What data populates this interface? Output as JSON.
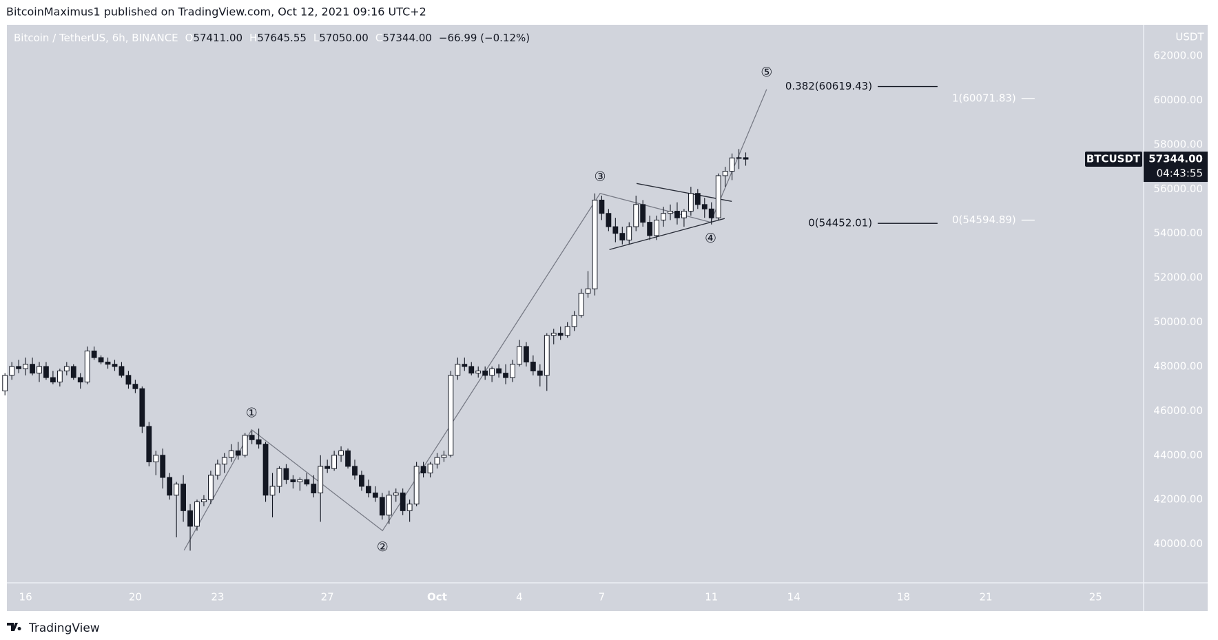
{
  "header": {
    "title": "BitcoinMaximus1 published on TradingView.com, Oct 12, 2021 09:16 UTC+2",
    "brand": "TradingView"
  },
  "chart_data": {
    "type": "candlestick",
    "legend": {
      "symbol": "Bitcoin / TetherUS, 6h, BINANCE",
      "ohlc": [
        {
          "key": "O",
          "value": "57411.00"
        },
        {
          "key": "H",
          "value": "57645.55"
        },
        {
          "key": "L",
          "value": "57050.00"
        },
        {
          "key": "C",
          "value": "57344.00"
        }
      ],
      "change": "−66.99 (−0.12%)"
    },
    "y_unit": "USDT",
    "up_color": "#ffffff",
    "down_color": "#131722",
    "background": "#d1d4dc",
    "grid": false,
    "xlim": [
      15.32,
      56.75
    ],
    "xticks": [
      16,
      20,
      23,
      27,
      {
        "value": 31,
        "label": "Oct"
      },
      {
        "value": 34,
        "label": "4"
      },
      {
        "value": 37,
        "label": "7"
      },
      {
        "value": 41,
        "label": "11"
      },
      {
        "value": 44,
        "label": "14"
      },
      {
        "value": 48,
        "label": "18"
      },
      {
        "value": 51,
        "label": "21"
      },
      {
        "value": 55,
        "label": "25"
      }
    ],
    "ylim": [
      38250,
      63400
    ],
    "yticks": [
      {
        "value": 40000,
        "label": "40000.00"
      },
      {
        "value": 42000,
        "label": "42000.00"
      },
      {
        "value": 44000,
        "label": "44000.00"
      },
      {
        "value": 46000,
        "label": "46000.00"
      },
      {
        "value": 48000,
        "label": "48000.00"
      },
      {
        "value": 50000,
        "label": "50000.00"
      },
      {
        "value": 52000,
        "label": "52000.00"
      },
      {
        "value": 54000,
        "label": "54000.00"
      },
      {
        "value": 56000,
        "label": "56000.00"
      },
      {
        "value": 58000,
        "label": "58000.00"
      },
      {
        "value": 60000,
        "label": "60000.00"
      },
      {
        "value": 62000,
        "label": "62000.00"
      }
    ],
    "x": [
      15.25,
      15.5,
      15.75,
      16,
      16.25,
      16.5,
      16.75,
      17,
      17.25,
      17.5,
      17.75,
      18,
      18.25,
      18.5,
      18.75,
      19,
      19.25,
      19.5,
      19.75,
      20,
      20.25,
      20.5,
      20.75,
      21,
      21.25,
      21.5,
      21.75,
      22,
      22.25,
      22.5,
      22.75,
      23,
      23.25,
      23.5,
      23.75,
      24,
      24.25,
      24.5,
      24.75,
      25,
      25.25,
      25.5,
      25.75,
      26,
      26.25,
      26.5,
      26.75,
      27,
      27.25,
      27.5,
      27.75,
      28,
      28.25,
      28.5,
      28.75,
      29,
      29.25,
      29.5,
      29.75,
      30,
      30.25,
      30.5,
      30.75,
      31,
      31.25,
      31.5,
      31.75,
      32,
      32.25,
      32.5,
      32.75,
      33,
      33.25,
      33.5,
      33.75,
      34,
      34.25,
      34.5,
      34.75,
      35,
      35.25,
      35.5,
      35.75,
      36,
      36.25,
      36.5,
      36.75,
      37,
      37.25,
      37.5,
      37.75,
      38,
      38.25,
      38.5,
      38.75,
      39,
      39.25,
      39.5,
      39.75,
      40,
      40.25,
      40.5,
      40.75,
      41,
      41.25,
      41.5,
      41.75,
      42,
      42.25
    ],
    "open": [
      46900,
      47600,
      48000,
      47900,
      48100,
      47700,
      48000,
      47500,
      47300,
      47800,
      48000,
      47500,
      47300,
      48700,
      48400,
      48200,
      48100,
      48000,
      47600,
      47200,
      47000,
      45300,
      43700,
      44000,
      43000,
      42200,
      42700,
      41500,
      40800,
      41900,
      42000,
      43100,
      43600,
      43900,
      44200,
      44000,
      44900,
      44700,
      44500,
      42200,
      42600,
      43400,
      42900,
      42800,
      42900,
      42700,
      42300,
      43500,
      43400,
      44000,
      44200,
      43500,
      43100,
      42600,
      42300,
      42100,
      41300,
      42200,
      42300,
      41500,
      41800,
      43500,
      43200,
      43600,
      43900,
      44000,
      47600,
      48100,
      48000,
      47700,
      47800,
      47600,
      47900,
      47700,
      47500,
      48100,
      48900,
      48200,
      47800,
      47600,
      49400,
      49500,
      49400,
      49800,
      50300,
      51300,
      51500,
      55500,
      54900,
      54300,
      54000,
      53700,
      54300,
      55300,
      54500,
      53900,
      54600,
      54900,
      55000,
      54700,
      55000,
      55800,
      55300,
      55100,
      54700,
      56600,
      56800,
      57400,
      57411
    ],
    "high": [
      47700,
      48200,
      48300,
      48400,
      48400,
      48200,
      48200,
      47800,
      47900,
      48200,
      48100,
      47700,
      48900,
      48900,
      48500,
      48400,
      48300,
      48200,
      47800,
      47400,
      47100,
      45500,
      44200,
      44300,
      43200,
      42800,
      43100,
      41800,
      42000,
      42200,
      43300,
      43800,
      44100,
      44500,
      44600,
      45000,
      45100,
      45200,
      44600,
      43200,
      43500,
      43600,
      43100,
      43000,
      43200,
      43100,
      44000,
      43800,
      44200,
      44400,
      44300,
      43800,
      43300,
      42900,
      42600,
      42300,
      42400,
      42500,
      42500,
      42000,
      43700,
      43700,
      43700,
      44100,
      44200,
      47800,
      48400,
      48400,
      48200,
      48000,
      48000,
      48000,
      48100,
      48100,
      48300,
      49200,
      49100,
      48500,
      48100,
      49500,
      49700,
      49800,
      50000,
      50500,
      51500,
      52300,
      55800,
      55700,
      55100,
      54700,
      54300,
      54500,
      55700,
      55500,
      54800,
      54800,
      55200,
      55300,
      55400,
      55100,
      56100,
      56000,
      55600,
      55400,
      56700,
      57000,
      57600,
      57800,
      57645.55
    ],
    "low": [
      46700,
      47400,
      47700,
      47600,
      47600,
      47300,
      47400,
      47200,
      47100,
      47600,
      47400,
      47000,
      47200,
      48300,
      48100,
      47900,
      47800,
      47500,
      47000,
      46800,
      45000,
      43500,
      43100,
      42500,
      42000,
      40300,
      41000,
      39700,
      40600,
      41700,
      41800,
      42900,
      43200,
      43700,
      43800,
      43900,
      44500,
      44300,
      41900,
      41200,
      42300,
      42700,
      42500,
      42400,
      42600,
      42100,
      41000,
      43200,
      43300,
      43700,
      43400,
      42900,
      42400,
      42100,
      41900,
      41100,
      40900,
      41900,
      41300,
      41000,
      41700,
      43000,
      43000,
      43400,
      43700,
      43900,
      47400,
      47800,
      47600,
      47500,
      47400,
      47300,
      47500,
      47200,
      47300,
      48000,
      48000,
      47600,
      47100,
      46900,
      49000,
      49200,
      49300,
      49600,
      50200,
      51100,
      51200,
      54600,
      54100,
      53600,
      53500,
      53500,
      54100,
      54300,
      53700,
      53700,
      54300,
      54600,
      54400,
      54300,
      54800,
      55100,
      54700,
      54400,
      54600,
      56100,
      56400,
      56900,
      57050
    ],
    "close": [
      47600,
      48000,
      47900,
      48100,
      47700,
      48000,
      47500,
      47300,
      47800,
      48000,
      47500,
      47300,
      48700,
      48400,
      48200,
      48100,
      48000,
      47600,
      47200,
      47000,
      45300,
      43700,
      44000,
      43000,
      42200,
      42700,
      41500,
      40800,
      41900,
      42000,
      43100,
      43600,
      43900,
      44200,
      44000,
      44900,
      44700,
      44500,
      42200,
      42600,
      43400,
      42900,
      42800,
      42900,
      42700,
      42300,
      43500,
      43400,
      44000,
      44200,
      43500,
      43100,
      42600,
      42300,
      42100,
      41300,
      42200,
      42300,
      41500,
      41800,
      43500,
      43200,
      43600,
      43900,
      44000,
      47600,
      48100,
      48000,
      47700,
      47800,
      47600,
      47900,
      47700,
      47500,
      48100,
      48900,
      48200,
      47800,
      47600,
      49400,
      49500,
      49400,
      49800,
      50300,
      51300,
      51500,
      55500,
      54900,
      54300,
      54000,
      53700,
      54300,
      55300,
      54500,
      53900,
      54600,
      54900,
      55000,
      54700,
      55000,
      55800,
      55300,
      55100,
      54700,
      56600,
      56800,
      57400,
      57411,
      57344
    ],
    "wave": {
      "x": [
        21.78,
        24.24,
        29.01,
        36.94,
        40.97,
        43.01
      ],
      "y": [
        39720,
        45150,
        40600,
        55800,
        54500,
        60490
      ],
      "labels": [
        null,
        "①",
        "②",
        "③",
        "④",
        "⑤"
      ]
    },
    "trendlines": [
      {
        "x": [
          38.27,
          41.74
        ],
        "y": [
          56250,
          55440
        ]
      },
      {
        "x": [
          37.28,
          41.48
        ],
        "y": [
          53270,
          54670
        ]
      }
    ],
    "fib": [
      {
        "label": "0.382(60619.43)",
        "value": 60619.43,
        "x": [
          47.06,
          49.24
        ],
        "color": "#131722"
      },
      {
        "label": "0(54452.01)",
        "value": 54452.01,
        "x": [
          47.06,
          49.24
        ],
        "color": "#131722"
      },
      {
        "label": "1(60071.83)",
        "value": 60071.83,
        "x": [
          52.3,
          52.78
        ],
        "color": "#ffffff"
      },
      {
        "label": "0(54594.89)",
        "value": 54594.89,
        "x": [
          52.3,
          52.78
        ],
        "color": "#ffffff"
      }
    ],
    "price_tag": {
      "symbol": "BTCUSDT",
      "value": 57344,
      "label": "57344.00",
      "countdown": "04:43:55"
    }
  }
}
